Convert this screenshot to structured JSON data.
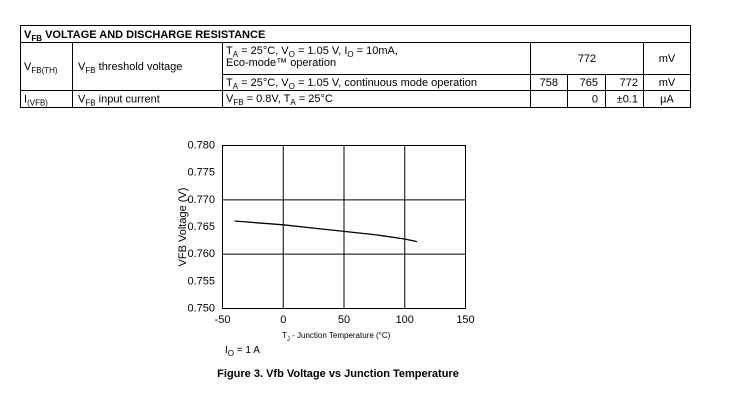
{
  "table": {
    "header": [
      {
        "t": "V"
      },
      {
        "sub": "FB"
      },
      {
        "t": " VOLTAGE AND DISCHARGE RESISTANCE"
      }
    ],
    "rows": [
      {
        "symbol": [
          {
            "t": "V"
          },
          {
            "sub": "FB(TH)"
          }
        ],
        "parameter": [
          {
            "t": "V"
          },
          {
            "sub": "FB"
          },
          {
            "t": " threshold voltage"
          }
        ],
        "subrows": [
          {
            "conditions": [
              [
                {
                  "t": "T"
                },
                {
                  "sub": "A"
                },
                {
                  "t": " = 25°C, V"
                },
                {
                  "sub": "O"
                },
                {
                  "t": " = 1.05 V, I"
                },
                {
                  "sub": "O"
                },
                {
                  "t": " = 10mA,"
                }
              ],
              [
                {
                  "t": "Eco-mode™ operation"
                }
              ]
            ],
            "typ": 772,
            "unit": "mV"
          },
          {
            "conditions": [
              [
                {
                  "t": "T"
                },
                {
                  "sub": "A"
                },
                {
                  "t": " = 25°C, V"
                },
                {
                  "sub": "O"
                },
                {
                  "t": " = 1.05 V, continuous mode operation"
                }
              ]
            ],
            "min": 758,
            "typ": 765,
            "max": 772,
            "unit": "mV"
          }
        ]
      },
      {
        "symbol": [
          {
            "t": "I"
          },
          {
            "sub": "(VFB)"
          }
        ],
        "parameter": [
          {
            "t": "V"
          },
          {
            "sub": "FB"
          },
          {
            "t": " input current"
          }
        ],
        "subrows": [
          {
            "conditions": [
              [
                {
                  "t": "V"
                },
                {
                  "sub": "FB"
                },
                {
                  "t": " = 0.8V, T"
                },
                {
                  "sub": "A"
                },
                {
                  "t": " = 25°C"
                }
              ]
            ],
            "typ": 0,
            "max": "±0.1",
            "unit": "µA"
          }
        ]
      }
    ]
  },
  "chart_data": {
    "type": "line",
    "x_label": [
      {
        "t": "T"
      },
      {
        "sub": "J"
      },
      {
        "t": " - Junction Temperature (°C)"
      }
    ],
    "y_label": "VFB Voltage (V)",
    "annotation": [
      {
        "t": "I"
      },
      {
        "sub": "O"
      },
      {
        "t": " = 1 A"
      }
    ],
    "x": [
      -40,
      0,
      25,
      50,
      75,
      100,
      110
    ],
    "series": [
      {
        "name": "VFB",
        "color": "#000000",
        "values": [
          0.7661,
          0.7654,
          0.7648,
          0.7642,
          0.7636,
          0.7628,
          0.7623
        ]
      }
    ],
    "xlim": [
      -50,
      150
    ],
    "xticks": [
      -50,
      0,
      50,
      100,
      150
    ],
    "ylim": [
      0.75,
      0.78
    ],
    "yticks": [
      {
        "value": 0.75,
        "label": "0.750"
      },
      0.755,
      {
        "value": 0.76,
        "label": "0.760"
      },
      0.765,
      {
        "value": 0.77,
        "label": "0.770"
      },
      0.775,
      {
        "value": 0.78,
        "label": "0.780"
      }
    ],
    "grid": true
  },
  "caption": "Figure 3. Vfb Voltage vs Junction Temperature"
}
